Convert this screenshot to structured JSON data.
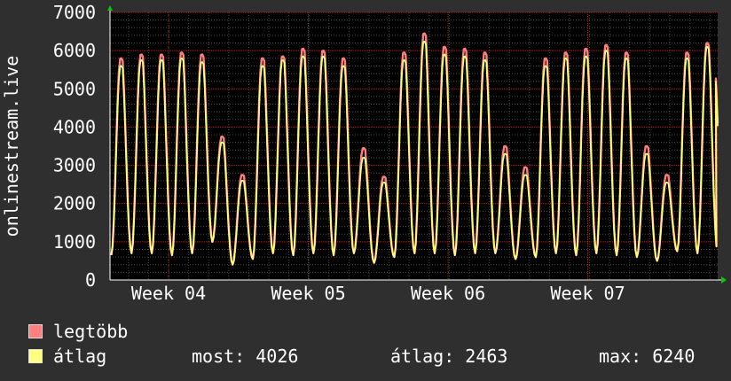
{
  "chart_data": {
    "type": "line",
    "ylabel": "onlinestream.live",
    "ylim": [
      0,
      7000
    ],
    "yticks": [
      0,
      1000,
      2000,
      3000,
      4000,
      5000,
      6000,
      7000
    ],
    "xticks": [
      "Week 04",
      "Week 05",
      "Week 06",
      "Week 07"
    ],
    "grid": true,
    "series": [
      {
        "name": "legtöbb",
        "color": "#ff7f7f",
        "daily_peaks": [
          5800,
          5900,
          5900,
          5950,
          5900,
          3750,
          2750,
          5800,
          5850,
          6050,
          6000,
          5800,
          3450,
          2700,
          5950,
          6450,
          6100,
          6050,
          5950,
          3500,
          2950,
          5800,
          5950,
          6050,
          6150,
          5950,
          3500,
          2750,
          5950,
          6200
        ]
      },
      {
        "name": "átlag",
        "color": "#ffff7f",
        "daily_peaks": [
          5600,
          5750,
          5750,
          5800,
          5700,
          3600,
          2600,
          5600,
          5750,
          5850,
          5850,
          5600,
          3200,
          2550,
          5750,
          6240,
          5900,
          5850,
          5750,
          3300,
          2750,
          5600,
          5800,
          5850,
          6000,
          5800,
          3300,
          2550,
          5800,
          6100
        ]
      }
    ],
    "daily_minimum": [
      650,
      700,
      700,
      650,
      700,
      1000,
      400,
      550,
      700,
      650,
      700,
      650,
      700,
      450,
      600,
      700,
      700,
      650,
      700,
      700,
      550,
      600,
      700,
      650,
      700,
      650,
      600,
      500,
      750,
      700
    ],
    "final_value": 4026
  },
  "legend": [
    {
      "label": "legtöbb",
      "color": "#ff7f7f"
    },
    {
      "label": "átlag",
      "color": "#ffff7f"
    }
  ],
  "stats": {
    "now": "most: 4026",
    "avg": "átlag: 2463",
    "max": "max: 6240"
  }
}
